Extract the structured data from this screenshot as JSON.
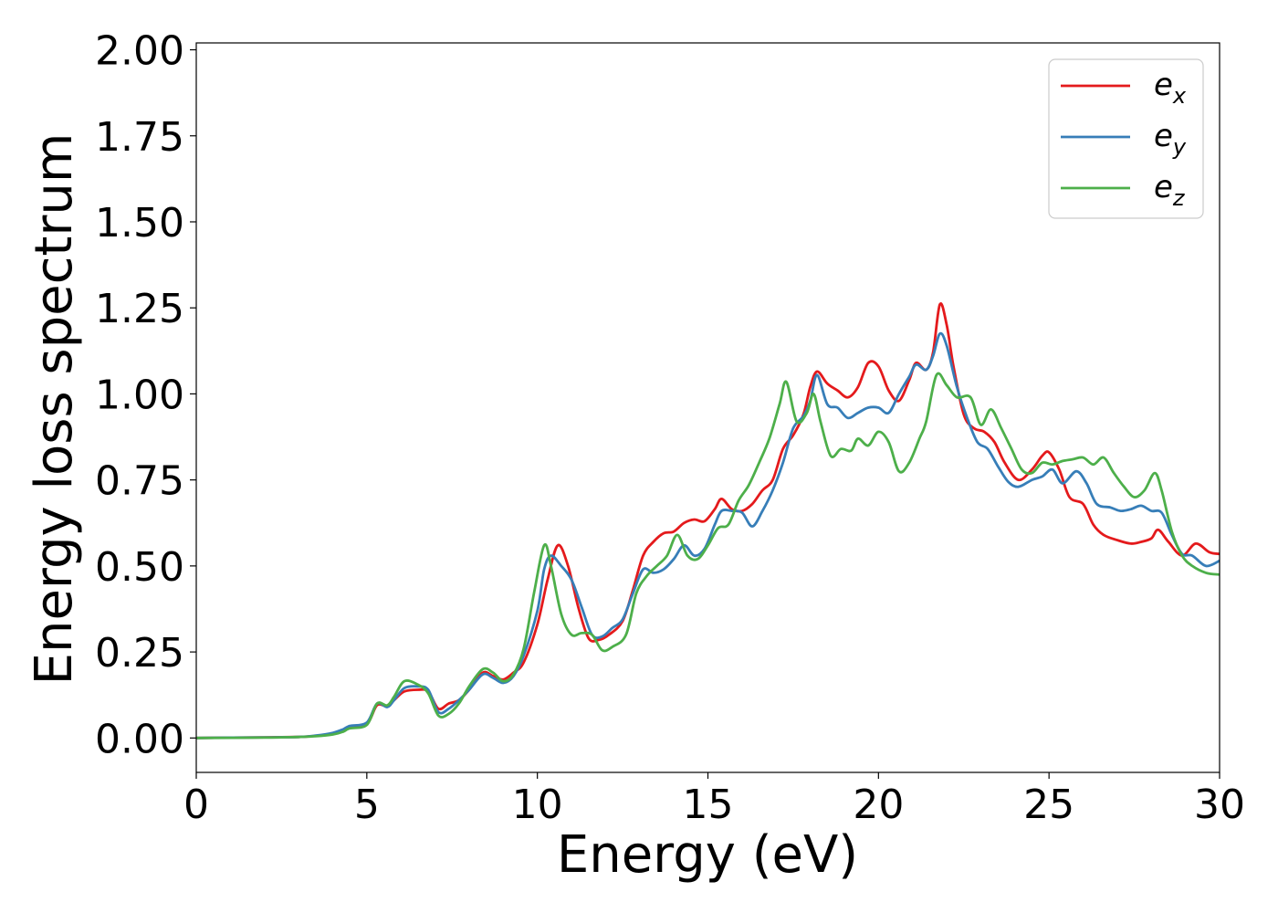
{
  "chart_data": {
    "type": "line",
    "title": "",
    "xlabel": "Energy (eV)",
    "ylabel": "Energy loss spectrum",
    "xlim": [
      0,
      30
    ],
    "ylim": [
      -0.1,
      2.02
    ],
    "xticks": [
      0,
      5,
      10,
      15,
      20,
      25,
      30
    ],
    "xtick_labels": [
      "0",
      "5",
      "10",
      "15",
      "20",
      "25",
      "30"
    ],
    "yticks": [
      0.0,
      0.25,
      0.5,
      0.75,
      1.0,
      1.25,
      1.5,
      1.75,
      2.0
    ],
    "ytick_labels": [
      "0.00",
      "0.25",
      "0.50",
      "0.75",
      "1.00",
      "1.25",
      "1.50",
      "1.75",
      "2.00"
    ],
    "grid": false,
    "legend_position": "top-right",
    "series": [
      {
        "base": "e",
        "sub": "x",
        "color": "#e41a1c",
        "points": [
          [
            0,
            0
          ],
          [
            2,
            0.002
          ],
          [
            3,
            0.003
          ],
          [
            3.5,
            0.006
          ],
          [
            4,
            0.012
          ],
          [
            4.3,
            0.02
          ],
          [
            4.5,
            0.03
          ],
          [
            5,
            0.04
          ],
          [
            5.3,
            0.095
          ],
          [
            5.6,
            0.092
          ],
          [
            5.8,
            0.11
          ],
          [
            6.1,
            0.135
          ],
          [
            6.5,
            0.14
          ],
          [
            6.8,
            0.135
          ],
          [
            7.1,
            0.085
          ],
          [
            7.4,
            0.1
          ],
          [
            7.7,
            0.11
          ],
          [
            8,
            0.14
          ],
          [
            8.4,
            0.19
          ],
          [
            8.7,
            0.18
          ],
          [
            9,
            0.17
          ],
          [
            9.3,
            0.19
          ],
          [
            9.6,
            0.22
          ],
          [
            10,
            0.33
          ],
          [
            10.3,
            0.46
          ],
          [
            10.6,
            0.56
          ],
          [
            10.9,
            0.5
          ],
          [
            11.2,
            0.38
          ],
          [
            11.5,
            0.29
          ],
          [
            11.8,
            0.285
          ],
          [
            12.1,
            0.3
          ],
          [
            12.5,
            0.34
          ],
          [
            12.8,
            0.43
          ],
          [
            13.1,
            0.53
          ],
          [
            13.4,
            0.57
          ],
          [
            13.7,
            0.595
          ],
          [
            14,
            0.6
          ],
          [
            14.3,
            0.625
          ],
          [
            14.6,
            0.635
          ],
          [
            14.9,
            0.63
          ],
          [
            15.2,
            0.665
          ],
          [
            15.4,
            0.695
          ],
          [
            15.7,
            0.665
          ],
          [
            16,
            0.66
          ],
          [
            16.3,
            0.68
          ],
          [
            16.6,
            0.72
          ],
          [
            16.9,
            0.75
          ],
          [
            17.2,
            0.84
          ],
          [
            17.5,
            0.88
          ],
          [
            17.8,
            0.94
          ],
          [
            18,
            1.02
          ],
          [
            18.2,
            1.065
          ],
          [
            18.5,
            1.03
          ],
          [
            18.8,
            1.01
          ],
          [
            19.1,
            0.99
          ],
          [
            19.4,
            1.02
          ],
          [
            19.7,
            1.09
          ],
          [
            20,
            1.08
          ],
          [
            20.3,
            1.01
          ],
          [
            20.6,
            0.98
          ],
          [
            20.9,
            1.04
          ],
          [
            21.1,
            1.09
          ],
          [
            21.4,
            1.07
          ],
          [
            21.6,
            1.12
          ],
          [
            21.8,
            1.26
          ],
          [
            22,
            1.2
          ],
          [
            22.2,
            1.08
          ],
          [
            22.5,
            0.94
          ],
          [
            22.8,
            0.9
          ],
          [
            23.1,
            0.89
          ],
          [
            23.4,
            0.86
          ],
          [
            23.7,
            0.8
          ],
          [
            24.1,
            0.75
          ],
          [
            24.5,
            0.78
          ],
          [
            24.8,
            0.82
          ],
          [
            25,
            0.83
          ],
          [
            25.3,
            0.78
          ],
          [
            25.6,
            0.7
          ],
          [
            26,
            0.68
          ],
          [
            26.3,
            0.62
          ],
          [
            26.6,
            0.59
          ],
          [
            27,
            0.575
          ],
          [
            27.4,
            0.565
          ],
          [
            27.7,
            0.57
          ],
          [
            28,
            0.58
          ],
          [
            28.2,
            0.605
          ],
          [
            28.5,
            0.57
          ],
          [
            28.9,
            0.53
          ],
          [
            29.3,
            0.565
          ],
          [
            29.7,
            0.54
          ],
          [
            30,
            0.535
          ]
        ]
      },
      {
        "base": "e",
        "sub": "y",
        "color": "#377eb8",
        "points": [
          [
            0,
            0
          ],
          [
            2,
            0.002
          ],
          [
            3,
            0.003
          ],
          [
            3.5,
            0.007
          ],
          [
            4,
            0.015
          ],
          [
            4.3,
            0.025
          ],
          [
            4.5,
            0.035
          ],
          [
            5,
            0.045
          ],
          [
            5.3,
            0.1
          ],
          [
            5.6,
            0.09
          ],
          [
            5.8,
            0.11
          ],
          [
            6.1,
            0.145
          ],
          [
            6.5,
            0.15
          ],
          [
            6.8,
            0.14
          ],
          [
            7.1,
            0.075
          ],
          [
            7.4,
            0.085
          ],
          [
            7.7,
            0.11
          ],
          [
            8,
            0.14
          ],
          [
            8.4,
            0.185
          ],
          [
            8.7,
            0.175
          ],
          [
            9,
            0.16
          ],
          [
            9.3,
            0.18
          ],
          [
            9.6,
            0.24
          ],
          [
            10,
            0.37
          ],
          [
            10.2,
            0.49
          ],
          [
            10.4,
            0.53
          ],
          [
            10.7,
            0.5
          ],
          [
            11,
            0.46
          ],
          [
            11.3,
            0.38
          ],
          [
            11.6,
            0.3
          ],
          [
            11.9,
            0.295
          ],
          [
            12.2,
            0.32
          ],
          [
            12.5,
            0.345
          ],
          [
            12.8,
            0.42
          ],
          [
            13.1,
            0.49
          ],
          [
            13.4,
            0.48
          ],
          [
            13.7,
            0.49
          ],
          [
            14,
            0.52
          ],
          [
            14.3,
            0.56
          ],
          [
            14.6,
            0.53
          ],
          [
            14.9,
            0.55
          ],
          [
            15.2,
            0.62
          ],
          [
            15.4,
            0.66
          ],
          [
            15.7,
            0.66
          ],
          [
            16,
            0.655
          ],
          [
            16.3,
            0.615
          ],
          [
            16.6,
            0.66
          ],
          [
            16.9,
            0.72
          ],
          [
            17.2,
            0.8
          ],
          [
            17.5,
            0.9
          ],
          [
            17.8,
            0.935
          ],
          [
            18,
            0.98
          ],
          [
            18.2,
            1.055
          ],
          [
            18.5,
            0.97
          ],
          [
            18.8,
            0.96
          ],
          [
            19.1,
            0.93
          ],
          [
            19.4,
            0.945
          ],
          [
            19.7,
            0.96
          ],
          [
            20,
            0.96
          ],
          [
            20.3,
            0.945
          ],
          [
            20.6,
            1.0
          ],
          [
            20.9,
            1.05
          ],
          [
            21.1,
            1.085
          ],
          [
            21.4,
            1.07
          ],
          [
            21.6,
            1.11
          ],
          [
            21.8,
            1.175
          ],
          [
            22,
            1.14
          ],
          [
            22.3,
            1.02
          ],
          [
            22.6,
            0.93
          ],
          [
            22.9,
            0.86
          ],
          [
            23.2,
            0.84
          ],
          [
            23.5,
            0.79
          ],
          [
            23.8,
            0.745
          ],
          [
            24.1,
            0.73
          ],
          [
            24.5,
            0.75
          ],
          [
            24.8,
            0.76
          ],
          [
            25.1,
            0.78
          ],
          [
            25.4,
            0.74
          ],
          [
            25.8,
            0.775
          ],
          [
            26.1,
            0.74
          ],
          [
            26.4,
            0.68
          ],
          [
            26.8,
            0.67
          ],
          [
            27.1,
            0.66
          ],
          [
            27.4,
            0.665
          ],
          [
            27.7,
            0.675
          ],
          [
            28,
            0.66
          ],
          [
            28.3,
            0.655
          ],
          [
            28.6,
            0.59
          ],
          [
            28.9,
            0.535
          ],
          [
            29.2,
            0.53
          ],
          [
            29.6,
            0.5
          ],
          [
            30,
            0.515
          ]
        ]
      },
      {
        "base": "e",
        "sub": "z",
        "color": "#4daf4a",
        "points": [
          [
            0,
            0
          ],
          [
            2,
            0.001
          ],
          [
            3,
            0.003
          ],
          [
            3.5,
            0.005
          ],
          [
            4,
            0.01
          ],
          [
            4.3,
            0.018
          ],
          [
            4.5,
            0.028
          ],
          [
            5,
            0.038
          ],
          [
            5.3,
            0.1
          ],
          [
            5.6,
            0.095
          ],
          [
            5.8,
            0.12
          ],
          [
            6.1,
            0.165
          ],
          [
            6.5,
            0.155
          ],
          [
            6.8,
            0.13
          ],
          [
            7.1,
            0.065
          ],
          [
            7.4,
            0.07
          ],
          [
            7.7,
            0.1
          ],
          [
            8,
            0.15
          ],
          [
            8.4,
            0.2
          ],
          [
            8.7,
            0.19
          ],
          [
            9,
            0.165
          ],
          [
            9.3,
            0.185
          ],
          [
            9.6,
            0.26
          ],
          [
            9.9,
            0.42
          ],
          [
            10.2,
            0.56
          ],
          [
            10.4,
            0.5
          ],
          [
            10.7,
            0.36
          ],
          [
            11,
            0.3
          ],
          [
            11.3,
            0.305
          ],
          [
            11.6,
            0.3
          ],
          [
            11.9,
            0.255
          ],
          [
            12.2,
            0.265
          ],
          [
            12.6,
            0.3
          ],
          [
            12.9,
            0.42
          ],
          [
            13.2,
            0.47
          ],
          [
            13.5,
            0.5
          ],
          [
            13.8,
            0.53
          ],
          [
            14.1,
            0.59
          ],
          [
            14.4,
            0.53
          ],
          [
            14.7,
            0.52
          ],
          [
            15,
            0.56
          ],
          [
            15.3,
            0.61
          ],
          [
            15.6,
            0.62
          ],
          [
            15.9,
            0.69
          ],
          [
            16.2,
            0.735
          ],
          [
            16.5,
            0.8
          ],
          [
            16.8,
            0.87
          ],
          [
            17.1,
            0.97
          ],
          [
            17.3,
            1.035
          ],
          [
            17.6,
            0.92
          ],
          [
            17.9,
            0.945
          ],
          [
            18.1,
            1.0
          ],
          [
            18.3,
            0.92
          ],
          [
            18.6,
            0.82
          ],
          [
            18.9,
            0.84
          ],
          [
            19.2,
            0.835
          ],
          [
            19.4,
            0.87
          ],
          [
            19.7,
            0.85
          ],
          [
            20,
            0.89
          ],
          [
            20.3,
            0.86
          ],
          [
            20.6,
            0.775
          ],
          [
            20.9,
            0.8
          ],
          [
            21.2,
            0.87
          ],
          [
            21.4,
            0.92
          ],
          [
            21.7,
            1.055
          ],
          [
            22,
            1.025
          ],
          [
            22.3,
            0.99
          ],
          [
            22.7,
            0.99
          ],
          [
            23,
            0.91
          ],
          [
            23.3,
            0.955
          ],
          [
            23.6,
            0.9
          ],
          [
            23.9,
            0.84
          ],
          [
            24.2,
            0.78
          ],
          [
            24.5,
            0.77
          ],
          [
            24.8,
            0.8
          ],
          [
            25.1,
            0.795
          ],
          [
            25.4,
            0.805
          ],
          [
            25.7,
            0.81
          ],
          [
            26,
            0.815
          ],
          [
            26.3,
            0.795
          ],
          [
            26.6,
            0.815
          ],
          [
            26.9,
            0.77
          ],
          [
            27.2,
            0.73
          ],
          [
            27.5,
            0.7
          ],
          [
            27.8,
            0.72
          ],
          [
            28.1,
            0.77
          ],
          [
            28.3,
            0.72
          ],
          [
            28.6,
            0.6
          ],
          [
            28.9,
            0.53
          ],
          [
            29.2,
            0.5
          ],
          [
            29.6,
            0.48
          ],
          [
            30,
            0.475
          ]
        ]
      }
    ]
  }
}
